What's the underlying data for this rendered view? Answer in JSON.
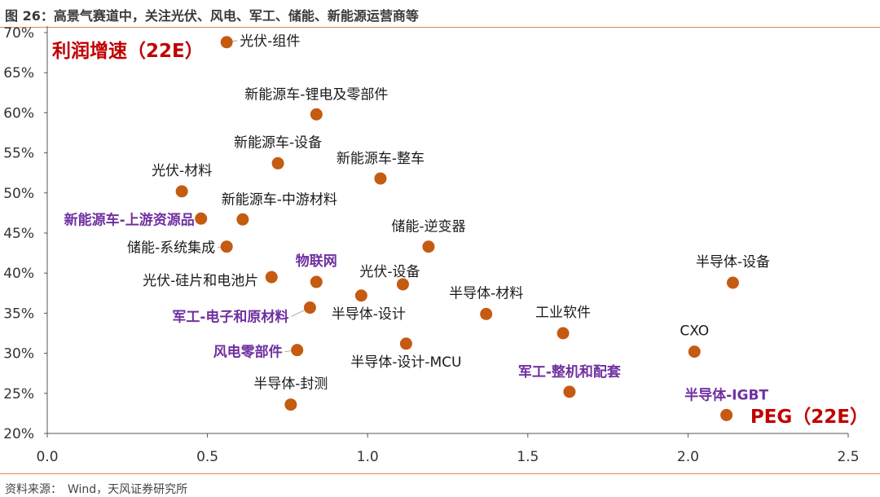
{
  "figure": {
    "title": "图 26：高景气赛道中，关注光伏、风电、军工、储能、新能源运营商等",
    "source": "资料来源：　Wind，天风证券研究所"
  },
  "colors": {
    "marker": "#c55a11",
    "label": "#1a1a1a",
    "highlight_label": "#7030a0",
    "corner_label": "#c00000",
    "axis": "#555555",
    "rule": "#e08a4a"
  },
  "chart_data": {
    "type": "scatter",
    "xlabel": "PEG（22E）",
    "ylabel": "利润增速（22E）",
    "xlim": [
      0,
      2.5
    ],
    "ylim": [
      0.2,
      0.7
    ],
    "x_ticks": [
      "0.0",
      "0.5",
      "1.0",
      "1.5",
      "2.0",
      "2.5"
    ],
    "y_ticks": [
      "20%",
      "25%",
      "30%",
      "35%",
      "40%",
      "45%",
      "50%",
      "55%",
      "60%",
      "65%",
      "70%"
    ],
    "grid": false,
    "points": [
      {
        "label": "光伏-组件",
        "x": 0.56,
        "y": 0.688,
        "highlight": false
      },
      {
        "label": "新能源车-锂电及零部件",
        "x": 0.84,
        "y": 0.598,
        "highlight": false
      },
      {
        "label": "新能源车-设备",
        "x": 0.72,
        "y": 0.537,
        "highlight": false
      },
      {
        "label": "新能源车-整车",
        "x": 1.04,
        "y": 0.518,
        "highlight": false
      },
      {
        "label": "光伏-材料",
        "x": 0.42,
        "y": 0.502,
        "highlight": false
      },
      {
        "label": "新能源车-中游材料",
        "x": 0.61,
        "y": 0.467,
        "highlight": false
      },
      {
        "label": "新能源车-上游资源品",
        "x": 0.48,
        "y": 0.468,
        "highlight": true
      },
      {
        "label": "储能-系统集成",
        "x": 0.56,
        "y": 0.433,
        "highlight": false
      },
      {
        "label": "储能-逆变器",
        "x": 1.19,
        "y": 0.433,
        "highlight": false
      },
      {
        "label": "物联网",
        "x": 0.84,
        "y": 0.389,
        "highlight": true
      },
      {
        "label": "光伏-硅片和电池片",
        "x": 0.7,
        "y": 0.395,
        "highlight": false
      },
      {
        "label": "光伏-设备",
        "x": 1.11,
        "y": 0.386,
        "highlight": false
      },
      {
        "label": "半导体-设计",
        "x": 0.98,
        "y": 0.372,
        "highlight": false
      },
      {
        "label": "军工-电子和原材料",
        "x": 0.82,
        "y": 0.357,
        "highlight": true
      },
      {
        "label": "半导体-材料",
        "x": 1.37,
        "y": 0.349,
        "highlight": false
      },
      {
        "label": "工业软件",
        "x": 1.61,
        "y": 0.325,
        "highlight": false
      },
      {
        "label": "半导体-设计-MCU",
        "x": 1.12,
        "y": 0.312,
        "highlight": false
      },
      {
        "label": "风电零部件",
        "x": 0.78,
        "y": 0.304,
        "highlight": true
      },
      {
        "label": "CXO",
        "x": 2.02,
        "y": 0.302,
        "highlight": false
      },
      {
        "label": "半导体-设备",
        "x": 2.14,
        "y": 0.388,
        "highlight": false
      },
      {
        "label": "军工-整机和配套",
        "x": 1.63,
        "y": 0.252,
        "highlight": true
      },
      {
        "label": "半导体-封测",
        "x": 0.76,
        "y": 0.236,
        "highlight": false
      },
      {
        "label": "半导体-IGBT",
        "x": 2.12,
        "y": 0.223,
        "highlight": true
      }
    ]
  }
}
